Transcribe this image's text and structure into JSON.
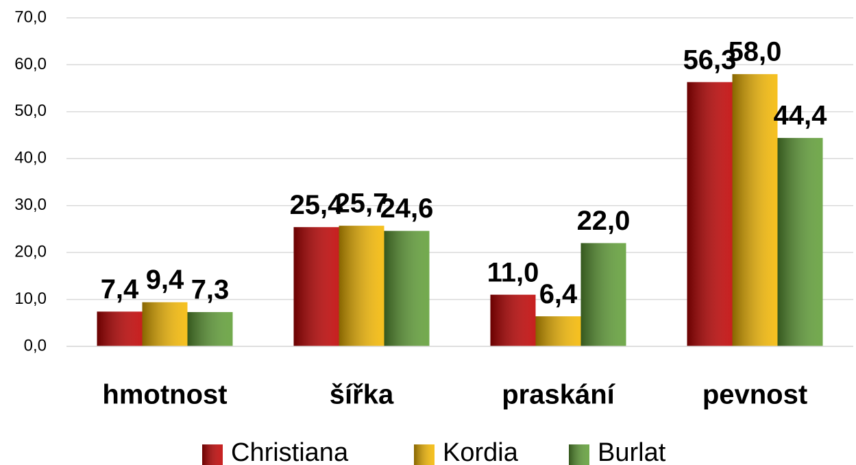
{
  "chart_data": {
    "type": "bar",
    "categories": [
      "hmotnost",
      "šířka",
      "praskání",
      "pevnost"
    ],
    "series": [
      {
        "name": "Christiana",
        "color": "#c00000",
        "values": [
          7.4,
          25.4,
          11.0,
          56.3
        ],
        "value_labels": [
          "7,4",
          "25,4",
          "11,0",
          "56,3"
        ]
      },
      {
        "name": "Kordia",
        "color": "#f5b800",
        "values": [
          9.4,
          25.7,
          6.4,
          58.0
        ],
        "value_labels": [
          "9,4",
          "25,7",
          "6,4",
          "58,0"
        ]
      },
      {
        "name": "Burlat",
        "color": "#5f9e35",
        "values": [
          7.3,
          24.6,
          22.0,
          44.4
        ],
        "value_labels": [
          "7,3",
          "24,6",
          "22,0",
          "44,4"
        ]
      }
    ],
    "ylim": [
      0,
      70
    ],
    "yticks": [
      {
        "value": 0,
        "label": "0,0"
      },
      {
        "value": 10,
        "label": "10,0"
      },
      {
        "value": 20,
        "label": "20,0"
      },
      {
        "value": 30,
        "label": "30,0"
      },
      {
        "value": 40,
        "label": "40,0"
      },
      {
        "value": 50,
        "label": "50,0"
      },
      {
        "value": 60,
        "label": "60,0"
      },
      {
        "value": 70,
        "label": "70,0"
      }
    ],
    "grid": true,
    "legend": "bottom"
  }
}
